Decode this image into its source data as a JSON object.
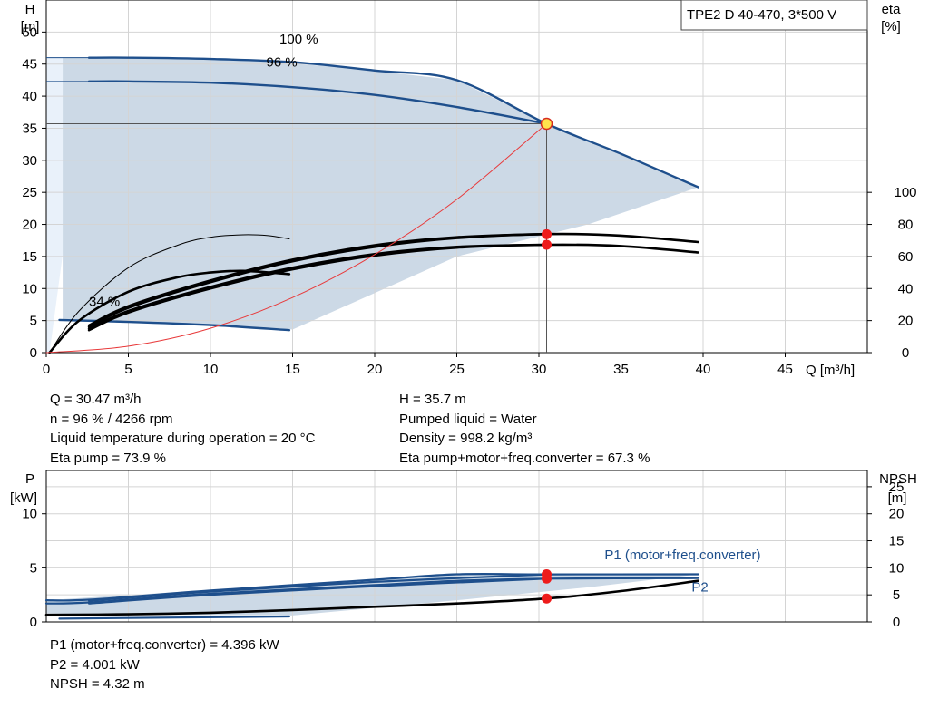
{
  "chart_data": [
    {
      "type": "line",
      "title": "TPE2 D 40-470, 3*500 V",
      "xlabel": "Q [m³/h]",
      "ylabel_left": [
        "H",
        "[m]"
      ],
      "ylabel_right": [
        "eta",
        "[%]"
      ],
      "xlim": [
        0,
        50
      ],
      "ylim_left": [
        0,
        55
      ],
      "ylim_right": [
        0,
        220
      ],
      "x_ticks": [
        0,
        5,
        10,
        15,
        20,
        25,
        30,
        35,
        40,
        45
      ],
      "y_ticks_left": [
        0,
        5,
        10,
        15,
        20,
        25,
        30,
        35,
        40,
        45,
        50
      ],
      "y_ticks_right": [
        0,
        20,
        40,
        60,
        80,
        100
      ],
      "grid": true,
      "annotations": [
        {
          "text": "100 %",
          "x": 14.2,
          "y": 48.2
        },
        {
          "text": "96 %",
          "x": 13.4,
          "y": 44.6
        },
        {
          "text": "34 %",
          "x": 2.6,
          "y": 7.3
        }
      ],
      "operating_region": [
        [
          1.0,
          46.0
        ],
        [
          2.6,
          46.0
        ],
        [
          11,
          45.8
        ],
        [
          18,
          44.5
        ],
        [
          25,
          42.5
        ],
        [
          30.47,
          35.7
        ],
        [
          35,
          31
        ],
        [
          39.7,
          25.8
        ],
        [
          33,
          20
        ],
        [
          25,
          15
        ],
        [
          15,
          3.6
        ],
        [
          13,
          3.9
        ],
        [
          8,
          4.5
        ],
        [
          2.6,
          4.9
        ],
        [
          1.0,
          5.1
        ]
      ],
      "series": [
        {
          "name": "100 %",
          "role": "head",
          "color": "#1e4f8c",
          "x": [
            2.6,
            5,
            10,
            15,
            20,
            25,
            30.47,
            35,
            39.7
          ],
          "y": [
            46.0,
            46.0,
            45.8,
            45.3,
            44.0,
            42.5,
            35.7,
            31.0,
            25.8
          ]
        },
        {
          "name": "96 %",
          "role": "head",
          "color": "#1e4f8c",
          "x": [
            2.6,
            5,
            10,
            15,
            20,
            25,
            30.47
          ],
          "y": [
            42.3,
            42.3,
            42.1,
            41.4,
            40.2,
            38.3,
            35.7
          ]
        },
        {
          "name": "34 %",
          "role": "head",
          "color": "#1e4f8c",
          "x": [
            0.8,
            5,
            10,
            14.8
          ],
          "y": [
            5.1,
            4.8,
            4.3,
            3.5
          ]
        },
        {
          "name": "eta pump 100 %",
          "role": "eta",
          "color": "#000000",
          "x": [
            2.6,
            5,
            10,
            15,
            20,
            25,
            30.5,
            35,
            39.7
          ],
          "y": [
            16,
            28,
            44,
            57,
            66,
            71.5,
            74,
            73,
            69
          ]
        },
        {
          "name": "eta pump 96 %",
          "role": "eta",
          "color": "#000000",
          "x": [
            2.6,
            5,
            10,
            15,
            20,
            25,
            30.5
          ],
          "y": [
            17,
            29,
            45,
            58,
            67,
            72,
            74
          ]
        },
        {
          "name": "eta total 100 %",
          "role": "eta",
          "color": "#000000",
          "x": [
            2.6,
            5,
            10,
            15,
            20,
            25,
            30.5,
            35,
            39.7
          ],
          "y": [
            14,
            25,
            40,
            52,
            60.5,
            65.5,
            67.3,
            66.5,
            62.5
          ]
        },
        {
          "name": "eta total 96 %",
          "role": "eta",
          "color": "#000000",
          "x": [
            2.6,
            5,
            10,
            15,
            20,
            25,
            30.5
          ],
          "y": [
            15,
            26,
            41,
            53,
            61.5,
            66,
            67.3
          ]
        },
        {
          "name": "eta pump 34 %",
          "role": "eta",
          "color": "#000000",
          "x": [
            0.2,
            2,
            5,
            8,
            10,
            12,
            13.5,
            14.8
          ],
          "y": [
            0,
            26,
            53,
            67,
            72,
            73.5,
            73,
            71
          ]
        },
        {
          "name": "eta total 34 %",
          "role": "eta",
          "color": "#000000",
          "x": [
            0.2,
            2,
            5,
            8,
            10,
            12,
            14.8
          ],
          "y": [
            0,
            20,
            38,
            47,
            50,
            51,
            49
          ]
        },
        {
          "name": "system curve",
          "role": "head",
          "color": "#e8393a",
          "x": [
            0,
            5,
            10,
            15,
            20,
            25,
            30.47
          ],
          "y": [
            0,
            1.0,
            3.8,
            8.6,
            15.3,
            23.9,
            35.7
          ]
        }
      ],
      "operating_point": {
        "x": 30.47,
        "y": 35.7,
        "eta_pump": 73.9,
        "eta_total": 67.3
      }
    },
    {
      "type": "line",
      "xlabel": "",
      "ylabel_left": [
        "P",
        "[kW]"
      ],
      "ylabel_right": [
        "NPSH",
        "[m]"
      ],
      "xlim": [
        0,
        50
      ],
      "ylim_left": [
        0,
        14
      ],
      "ylim_right": [
        0,
        28
      ],
      "y_ticks_left": [
        0,
        5,
        10
      ],
      "y_ticks_right": [
        0,
        5,
        10,
        15,
        20,
        25
      ],
      "grid": true,
      "labels": [
        {
          "text": "P1 (motor+freq.converter)",
          "x": 34,
          "y": 5.8
        },
        {
          "text": "P2",
          "x": 39.3,
          "y": 2.8
        }
      ],
      "operating_region": [
        [
          0,
          2.0
        ],
        [
          25,
          4.4
        ],
        [
          39.7,
          4.4
        ],
        [
          33,
          3.2
        ],
        [
          25,
          2.0
        ],
        [
          15,
          0.6
        ],
        [
          2.6,
          0.7
        ],
        [
          0,
          0.8
        ]
      ],
      "series": [
        {
          "name": "P1 (motor+freq.converter)",
          "role": "power",
          "color": "#1e4f8c",
          "x": [
            0,
            2.6,
            10,
            20,
            25,
            30.47,
            39.7
          ],
          "y": [
            2.0,
            2.05,
            2.9,
            3.9,
            4.4,
            4.396,
            4.4
          ]
        },
        {
          "name": "P2",
          "role": "power",
          "color": "#1e4f8c",
          "x": [
            0,
            2.6,
            10,
            20,
            25,
            30.47,
            39.7
          ],
          "y": [
            1.7,
            1.8,
            2.6,
            3.4,
            3.8,
            4.001,
            4.05
          ]
        },
        {
          "name": "P1 96 %",
          "role": "power",
          "color": "#1e4f8c",
          "x": [
            2.6,
            10,
            20,
            30.47
          ],
          "y": [
            1.95,
            2.8,
            3.7,
            4.396
          ]
        },
        {
          "name": "P2 96 %",
          "role": "power",
          "color": "#1e4f8c",
          "x": [
            2.6,
            10,
            20,
            30.47
          ],
          "y": [
            1.7,
            2.5,
            3.3,
            4.001
          ]
        },
        {
          "name": "P 34 %",
          "role": "power",
          "color": "#1e4f8c",
          "x": [
            0.8,
            14.8
          ],
          "y": [
            0.3,
            0.5
          ]
        },
        {
          "name": "NPSH",
          "role": "npsh",
          "color": "#000000",
          "x": [
            0,
            5,
            10,
            15,
            20,
            25,
            30.47,
            35,
            39.7
          ],
          "y": [
            1.3,
            1.4,
            1.7,
            2.2,
            2.8,
            3.4,
            4.32,
            5.7,
            7.6
          ]
        }
      ],
      "operating_points": [
        {
          "x": 30.47,
          "y": 4.396,
          "label": "P1"
        },
        {
          "x": 30.47,
          "y": 4.001,
          "label": "P2"
        },
        {
          "x": 30.47,
          "npsh": 4.32,
          "label": "NPSH"
        }
      ]
    }
  ],
  "info_upper": {
    "left": [
      "Q = 30.47 m³/h",
      "n = 96 % / 4266 rpm",
      "Liquid temperature during operation = 20 °C",
      "Eta pump = 73.9 %"
    ],
    "right": [
      "H = 35.7 m",
      "Pumped liquid = Water",
      "Density = 998.2 kg/m³",
      "Eta pump+motor+freq.converter = 67.3 %"
    ]
  },
  "info_lower": {
    "left": [
      "P1 (motor+freq.converter) = 4.396 kW",
      "P2 = 4.001 kW",
      "NPSH = 4.32 m"
    ]
  }
}
